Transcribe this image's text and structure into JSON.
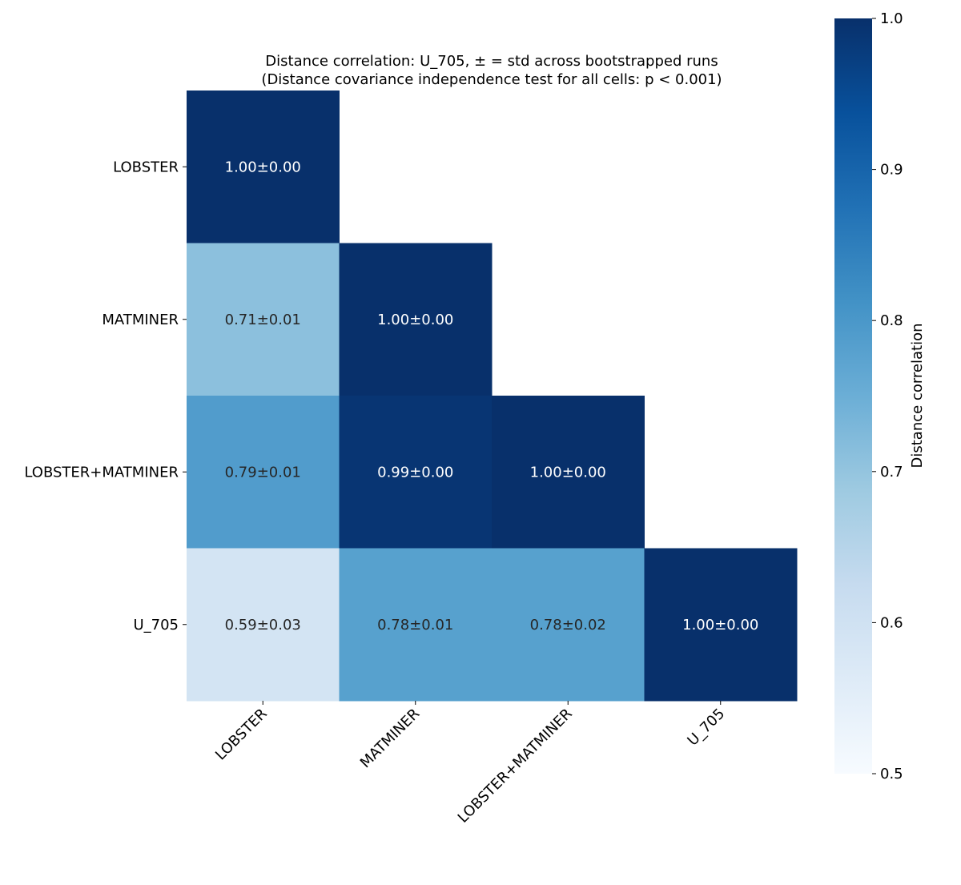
{
  "chart_data": {
    "type": "heatmap",
    "title": "Distance correlation: U_705, ± = std across bootstrapped runs",
    "subtitle": "(Distance covariance independence test for all cells: p < 0.001)",
    "row_labels": [
      "LOBSTER",
      "MATMINER",
      "LOBSTER+MATMINER",
      "U_705"
    ],
    "col_labels": [
      "LOBSTER",
      "MATMINER",
      "LOBSTER+MATMINER",
      "U_705"
    ],
    "mask": "upper-triangle",
    "cells": [
      {
        "row": 0,
        "col": 0,
        "value": 1.0,
        "std": 0.0,
        "label": "1.00±0.00"
      },
      {
        "row": 1,
        "col": 0,
        "value": 0.71,
        "std": 0.01,
        "label": "0.71±0.01"
      },
      {
        "row": 1,
        "col": 1,
        "value": 1.0,
        "std": 0.0,
        "label": "1.00±0.00"
      },
      {
        "row": 2,
        "col": 0,
        "value": 0.79,
        "std": 0.01,
        "label": "0.79±0.01"
      },
      {
        "row": 2,
        "col": 1,
        "value": 0.99,
        "std": 0.0,
        "label": "0.99±0.00"
      },
      {
        "row": 2,
        "col": 2,
        "value": 1.0,
        "std": 0.0,
        "label": "1.00±0.00"
      },
      {
        "row": 3,
        "col": 0,
        "value": 0.59,
        "std": 0.03,
        "label": "0.59±0.03"
      },
      {
        "row": 3,
        "col": 1,
        "value": 0.78,
        "std": 0.01,
        "label": "0.78±0.01"
      },
      {
        "row": 3,
        "col": 2,
        "value": 0.78,
        "std": 0.02,
        "label": "0.78±0.02"
      },
      {
        "row": 3,
        "col": 3,
        "value": 1.0,
        "std": 0.0,
        "label": "1.00±0.00"
      }
    ],
    "colormap": "Blues",
    "colormap_stops": [
      "#f7fbff",
      "#deebf7",
      "#c6dbef",
      "#9ecae1",
      "#6baed6",
      "#4292c6",
      "#2171b5",
      "#08519c",
      "#08306b"
    ],
    "vmin": 0.5,
    "vmax": 1.0,
    "colorbar": {
      "label": "Distance correlation",
      "ticks": [
        "0.5",
        "0.6",
        "0.7",
        "0.8",
        "0.9",
        "1.0"
      ],
      "placement": "right"
    },
    "grid": false
  }
}
